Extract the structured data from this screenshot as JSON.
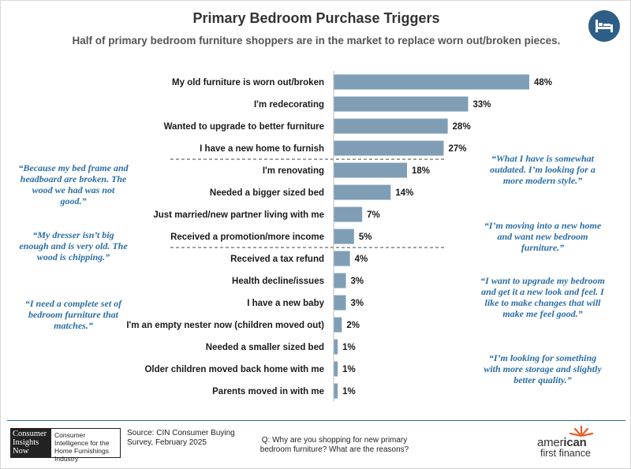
{
  "title": "Primary Bedroom Purchase Triggers",
  "subtitle": "Half of primary bedroom furniture shoppers are in the market to replace worn out/broken pieces.",
  "colors": {
    "bar": "#7f9eb6",
    "quote": "#2b6ea4",
    "title": "#333333",
    "icon_circle": "#2e5e86"
  },
  "icons": {
    "header": "bed-icon"
  },
  "chart_data": {
    "type": "bar",
    "orientation": "horizontal",
    "categories": [
      "My old furniture is worn out/broken",
      "I'm redecorating",
      "Wanted to upgrade to better furniture",
      "I have a new home to furnish",
      "I'm renovating",
      "Needed a bigger sized bed",
      "Just married/new partner living with me",
      "Received a promotion/more income",
      "Received a tax refund",
      "Health decline/issues",
      "I have a new baby",
      "I'm an empty nester now (children moved out)",
      "Needed a smaller sized bed",
      "Older children moved back home with me",
      "Parents moved in with me"
    ],
    "values": [
      48,
      33,
      28,
      27,
      18,
      14,
      7,
      5,
      4,
      3,
      3,
      2,
      1,
      1,
      1
    ],
    "value_labels": [
      "48%",
      "33%",
      "28%",
      "27%",
      "18%",
      "14%",
      "7%",
      "5%",
      "4%",
      "3%",
      "3%",
      "2%",
      "1%",
      "1%",
      "1%"
    ],
    "unit": "%",
    "xlim": [
      0,
      50
    ],
    "group_dividers_after_index": [
      3,
      7
    ]
  },
  "quotes_left": [
    "“Because my bed frame and headboard are broken. The wood we had was not good.”",
    "“My dresser isn’t big enough and is very old. The wood is chipping.”",
    "“I need a complete set of bedroom furniture that matches.”"
  ],
  "quotes_right": [
    "“What I have is somewhat outdated. I’m looking for a more modern style.”",
    "“I’m moving into a new home and want new bedroom furniture.”",
    "“I want to upgrade my bedroom and get it a new look and feel. I like to make changes that will make me feel good.”",
    "“I’m looking for something with more storage and slightly better quality.”"
  ],
  "footer": {
    "cin_logo_lines": [
      "Consumer",
      "Insights",
      "Now"
    ],
    "cin_tagline": "Consumer Intelligence for the Home Furnishings Industry",
    "source": "Source: CIN Consumer Buying Survey, February 2025",
    "question": "Q: Why are you shopping for new primary bedroom furniture? What are the reasons?",
    "aff_logo": {
      "part1": "amer",
      "part2": "ican",
      "line2": "first finance"
    }
  }
}
